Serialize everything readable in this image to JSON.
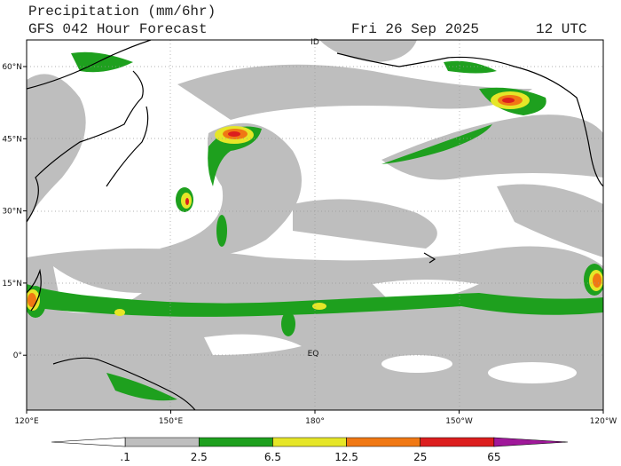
{
  "header": {
    "title": "Precipitation (mm/6hr)",
    "subtitle": "GFS 042 Hour Forecast",
    "date": "Fri 26 Sep 2025",
    "time": "12 UTC"
  },
  "map": {
    "lat_labels": [
      "60°N",
      "45°N",
      "30°N",
      "15°N",
      "0°"
    ],
    "lon_labels": [
      "120°E",
      "150°E",
      "180°",
      "150°W",
      "120°W"
    ],
    "markers": [
      "ID",
      "EQ"
    ]
  },
  "colorbar": {
    "labels": [
      ".1",
      "2.5",
      "6.5",
      "12.5",
      "25",
      "65"
    ],
    "colors": [
      "#ffffff",
      "#bebebe",
      "#1ea01e",
      "#e6e628",
      "#f07814",
      "#dc1e1e",
      "#a0189a"
    ]
  }
}
